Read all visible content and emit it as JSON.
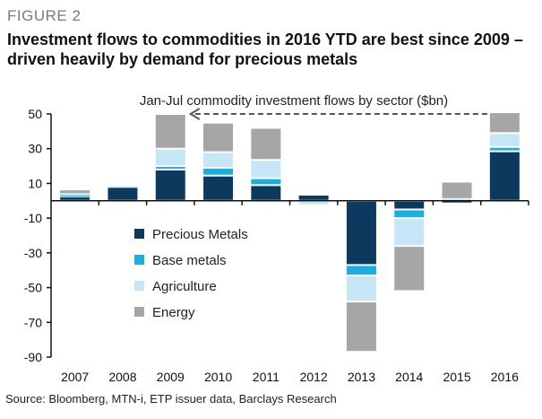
{
  "figure_label": "FIGURE 2",
  "headline": "Investment flows to commodities in 2016 YTD are best since 2009 – driven heavily by demand for precious metals",
  "source": "Source: Bloomberg, MTN-i, ETP issuer data, Barclays Research",
  "chart_data": {
    "type": "bar",
    "stacked": true,
    "title": "Jan-Jul commodity investment flows by sector ($bn)",
    "xlabel": "",
    "ylabel": "",
    "ylim": [
      -90,
      50
    ],
    "yticks": [
      50,
      30,
      10,
      -10,
      -30,
      -50,
      -70,
      -90
    ],
    "categories": [
      "2007",
      "2008",
      "2009",
      "2010",
      "2011",
      "2012",
      "2013",
      "2014",
      "2015",
      "2016"
    ],
    "legend_position": "center-left",
    "series": [
      {
        "name": "Precious Metals",
        "color": "#0b3a5e",
        "values": [
          2.5,
          8,
          18,
          14.5,
          9,
          3.5,
          -37,
          -5,
          -1,
          28.5
        ]
      },
      {
        "name": "Base metals",
        "color": "#1aafe0",
        "values": [
          0.5,
          0,
          2,
          4.5,
          4,
          0,
          -6,
          -5,
          0,
          2.5
        ]
      },
      {
        "name": "Agriculture",
        "color": "#c6e6f7",
        "values": [
          1.5,
          0.5,
          10,
          9,
          10.5,
          -2.5,
          -15,
          -16,
          1,
          8
        ]
      },
      {
        "name": "Energy",
        "color": "#a6a6a6",
        "values": [
          1.5,
          0,
          20,
          17,
          18.5,
          0,
          -29,
          -26,
          10,
          12
        ]
      }
    ]
  }
}
